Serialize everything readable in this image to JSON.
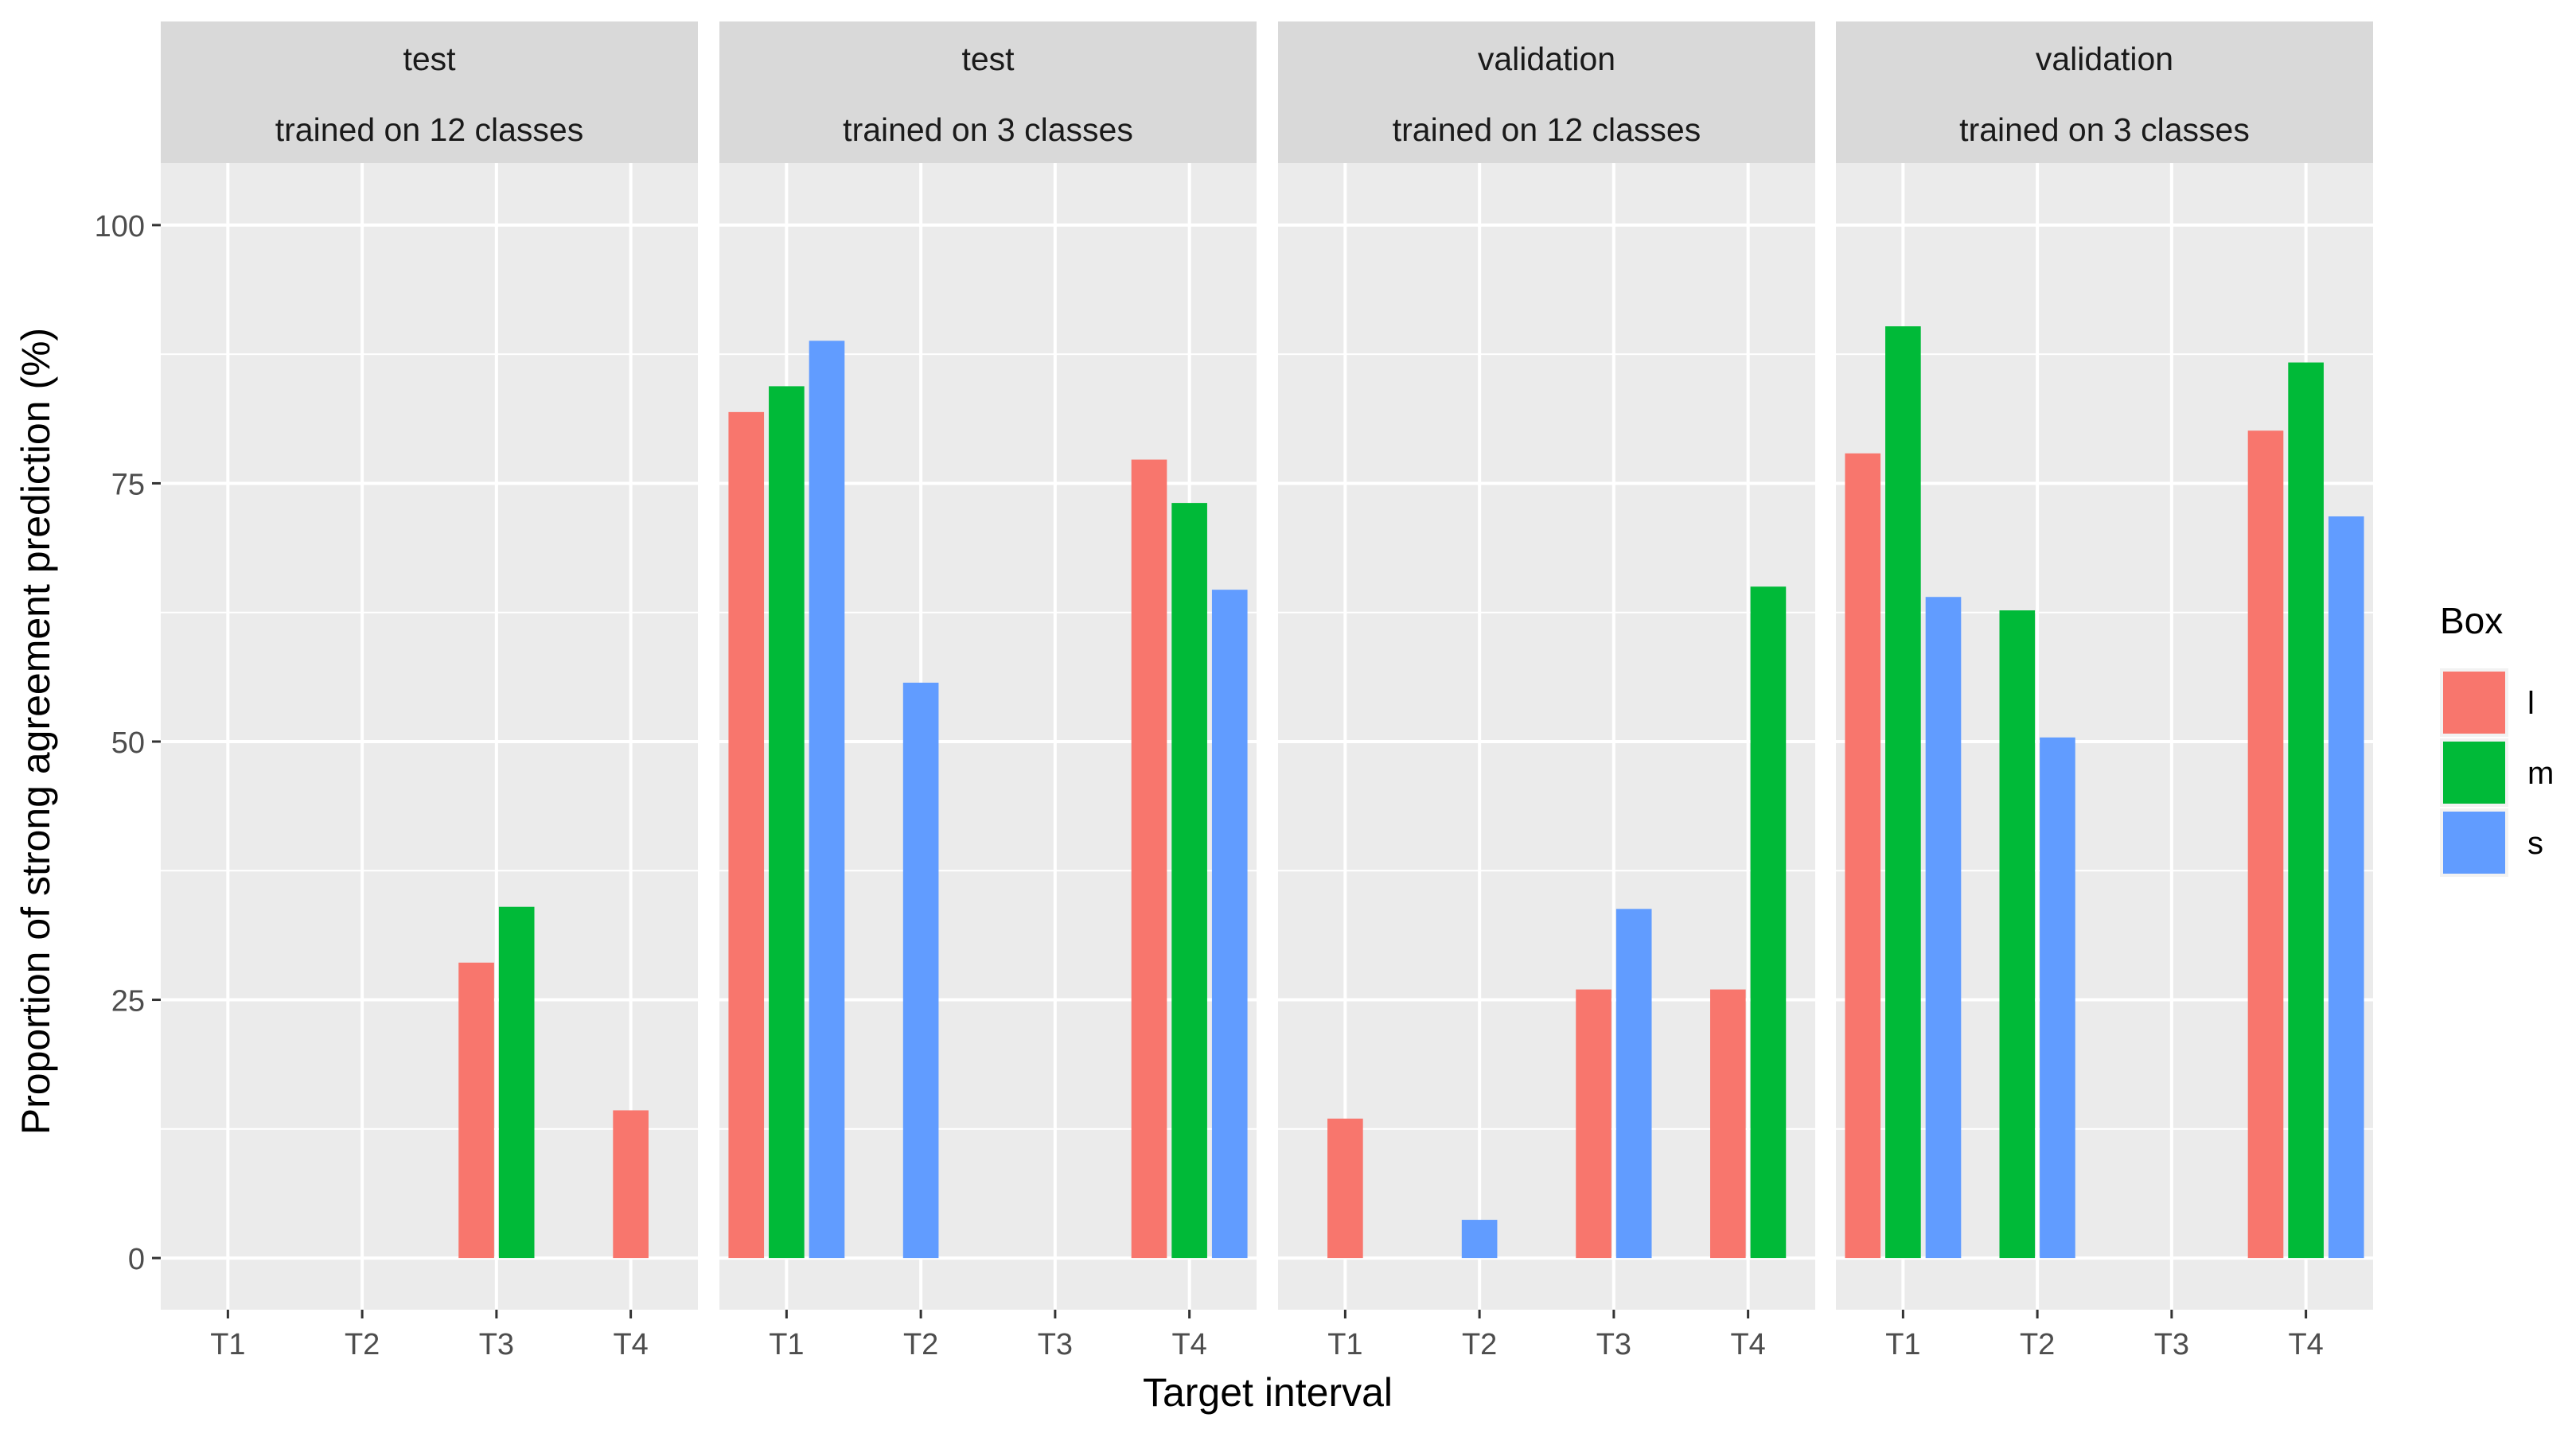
{
  "chart_data": {
    "type": "bar",
    "xlabel": "Target interval",
    "ylabel": "Proportion of strong agreement prediction (%)",
    "ylim": [
      -5,
      106
    ],
    "yticks": [
      0,
      25,
      50,
      75,
      100
    ],
    "categories": [
      "T1",
      "T2",
      "T3",
      "T4"
    ],
    "legend": {
      "title": "Box",
      "position": "right",
      "items": [
        {
          "key": "l",
          "label": "l",
          "color": "#F8766D"
        },
        {
          "key": "m",
          "label": "m",
          "color": "#00BA38"
        },
        {
          "key": "s",
          "label": "s",
          "color": "#619CFF"
        }
      ]
    },
    "panels": [
      {
        "strip_line1": "test",
        "strip_line2": "trained on 12 classes",
        "series": {
          "l": [
            null,
            null,
            28.6,
            14.3
          ],
          "m": [
            null,
            null,
            34.0,
            null
          ],
          "s": [
            null,
            null,
            null,
            null
          ]
        }
      },
      {
        "strip_line1": "test",
        "strip_line2": "trained on 3 classes",
        "series": {
          "l": [
            81.9,
            null,
            null,
            77.3
          ],
          "m": [
            84.4,
            null,
            null,
            73.1
          ],
          "s": [
            88.8,
            55.7,
            null,
            64.7
          ]
        }
      },
      {
        "strip_line1": "validation",
        "strip_line2": "trained on 12 classes",
        "series": {
          "l": [
            13.5,
            null,
            26.0,
            26.0
          ],
          "m": [
            null,
            null,
            null,
            65.0
          ],
          "s": [
            null,
            3.7,
            33.8,
            null
          ]
        }
      },
      {
        "strip_line1": "validation",
        "strip_line2": "trained on 3 classes",
        "series": {
          "l": [
            77.9,
            null,
            null,
            80.1
          ],
          "m": [
            90.2,
            62.7,
            null,
            86.7
          ],
          "s": [
            64.0,
            50.4,
            null,
            71.8
          ]
        }
      }
    ]
  }
}
